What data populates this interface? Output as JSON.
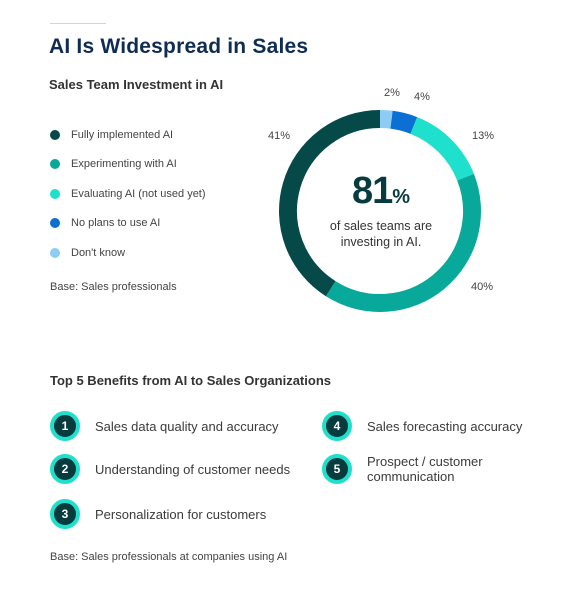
{
  "header": {
    "title": "AI Is Widespread in Sales",
    "subtitle": "Sales Team Investment in AI"
  },
  "chart_data": {
    "type": "pie",
    "title": "Sales Team Investment in AI",
    "categories": [
      "Fully implemented AI",
      "Experimenting with AI",
      "Evaluating AI (not used yet)",
      "No plans to use AI",
      "Don't know"
    ],
    "values": [
      41,
      40,
      13,
      4,
      2
    ],
    "value_labels": [
      "41%",
      "40%",
      "13%",
      "4%",
      "2%"
    ],
    "colors": [
      "#064949",
      "#08a89b",
      "#1ee0cc",
      "#0b6fd4",
      "#8dcdf5"
    ],
    "legend": "left"
  },
  "center": {
    "value": "81",
    "unit": "%",
    "line1": "of sales teams are",
    "line2": "investing in AI."
  },
  "legend_note": "Base: Sales professionals",
  "benefits": {
    "title": "Top 5 Benefits from AI to Sales Organizations",
    "items": [
      {
        "num": "1",
        "text": "Sales data quality and accuracy"
      },
      {
        "num": "2",
        "text": "Understanding of customer needs"
      },
      {
        "num": "3",
        "text": "Personalization for customers"
      },
      {
        "num": "4",
        "text": "Sales forecasting accuracy"
      },
      {
        "num": "5",
        "text": "Prospect / customer communication"
      }
    ],
    "note": "Base: Sales professionals at companies using AI"
  }
}
